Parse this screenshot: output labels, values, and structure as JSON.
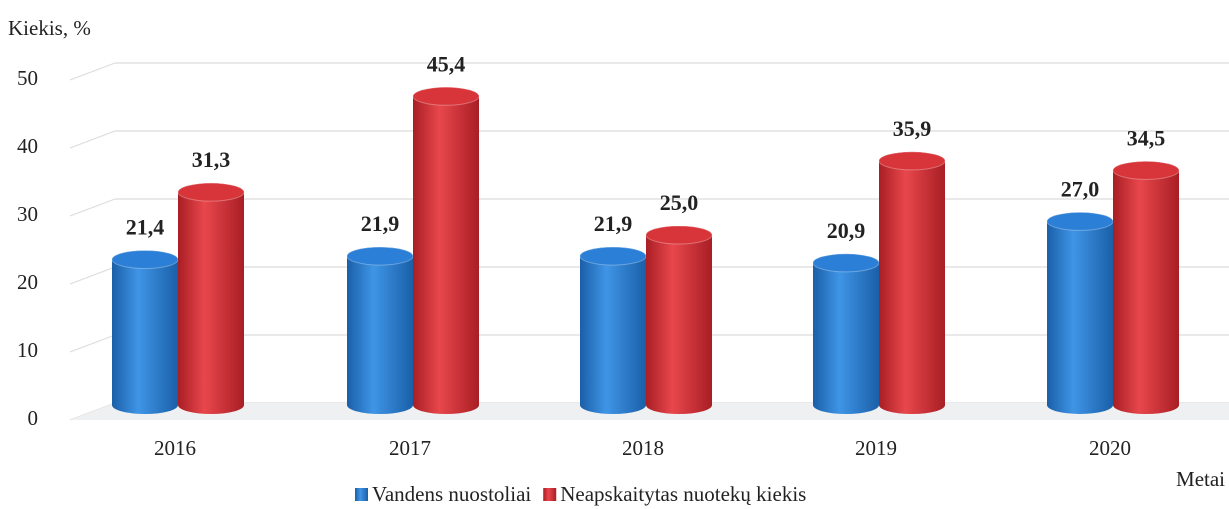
{
  "chart_data": {
    "type": "bar",
    "y_axis_label": "Kiekis, %",
    "x_axis_label": "Metai",
    "categories": [
      "2016",
      "2017",
      "2018",
      "2019",
      "2020"
    ],
    "series": [
      {
        "name": "Vandens nuostoliai",
        "color": "#2b7fd6",
        "values": [
          21.4,
          21.9,
          21.9,
          20.9,
          27.0
        ],
        "value_labels": [
          "21,4",
          "21,9",
          "21,9",
          "20,9",
          "27,0"
        ]
      },
      {
        "name": "Neapskaitytas nuotekų kiekis",
        "color": "#d8353a",
        "values": [
          31.3,
          45.4,
          25.0,
          35.9,
          34.5
        ],
        "value_labels": [
          "31,3",
          "45,4",
          "25,0",
          "35,9",
          "34,5"
        ]
      }
    ],
    "ylim": [
      0,
      50
    ],
    "yticks": [
      0,
      10,
      20,
      30,
      40,
      50
    ],
    "grid": true
  }
}
